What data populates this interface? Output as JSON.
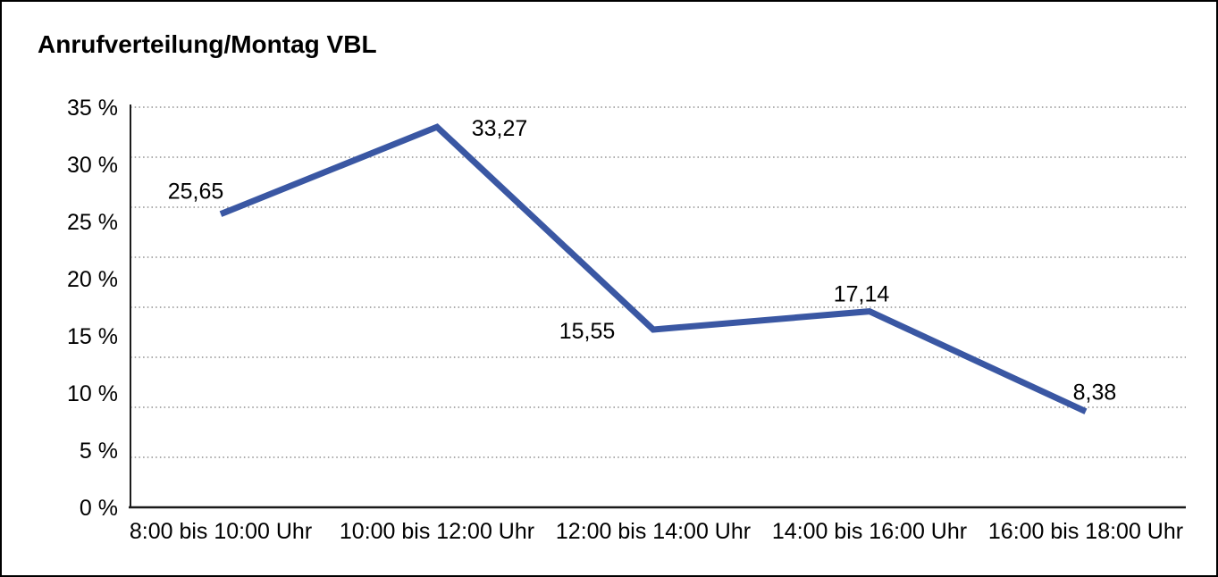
{
  "window": {
    "background": "#ffffff",
    "border_color": "#000000"
  },
  "title": "Anrufverteilung/Montag VBL",
  "chart_data": {
    "type": "line",
    "title": "Anrufverteilung/Montag VBL",
    "categories": [
      "8:00 bis 10:00 Uhr",
      "10:00 bis 12:00 Uhr",
      "12:00 bis 14:00 Uhr",
      "14:00 bis 16:00 Uhr",
      "16:00 bis 18:00 Uhr"
    ],
    "values": [
      25.65,
      33.27,
      15.55,
      17.14,
      8.38
    ],
    "point_labels": [
      "25,65",
      "33,27",
      "15,55",
      "17,14",
      "8,38"
    ],
    "xlabel": "",
    "ylabel": "",
    "ylim": [
      0,
      35
    ],
    "ytick_step": 5,
    "ytick_labels": [
      "0 %",
      "5 %",
      "10 %",
      "15 %",
      "20 %",
      "25 %",
      "30 %",
      "35 %"
    ],
    "grid": "horizontal dotted gridlines, 8 equal divisions between 0% and 35%",
    "gridline_divisions": 8,
    "legend": "none",
    "line_color": "#3A57A3"
  },
  "colors": {
    "line": "#3A57A3",
    "gridline": "#777777",
    "axis": "#1a1a1a",
    "text": "#000000",
    "background": "#ffffff",
    "border": "#000000"
  }
}
